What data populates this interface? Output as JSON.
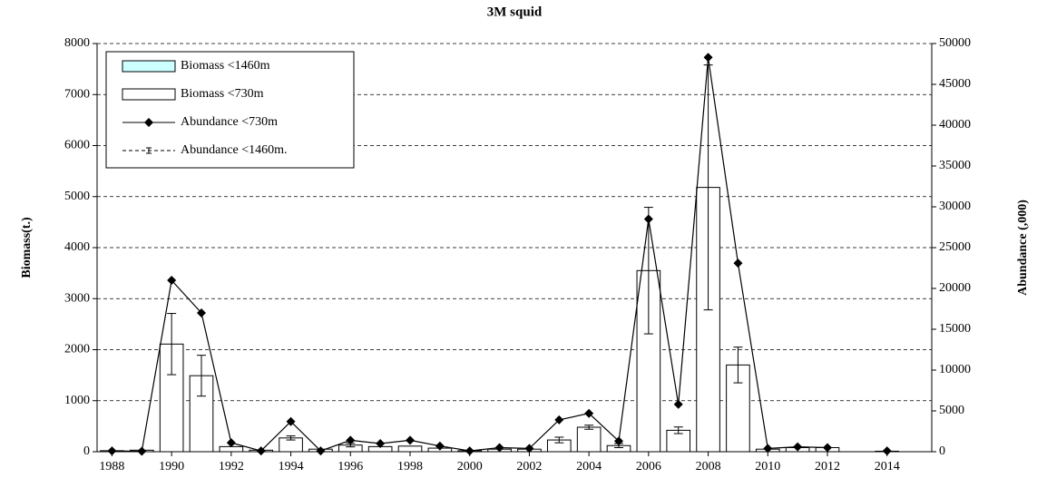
{
  "chart_data": {
    "type": "bar-line",
    "title": "3M squid",
    "y_label": "Biomass(t.)",
    "y2_label": "Abundance (,000)",
    "x": [
      1988,
      1989,
      1990,
      1991,
      1992,
      1993,
      1994,
      1995,
      1996,
      1997,
      1998,
      1999,
      2000,
      2001,
      2002,
      2003,
      2004,
      2005,
      2006,
      2007,
      2008,
      2009,
      2010,
      2011,
      2012,
      2013,
      2014,
      2015
    ],
    "xlim": [
      1987.5,
      2015.5
    ],
    "xticks": [
      1988,
      1990,
      1992,
      1994,
      1996,
      1998,
      2000,
      2002,
      2004,
      2006,
      2008,
      2010,
      2012,
      2014
    ],
    "ylim": [
      0,
      8000
    ],
    "yticks": [
      0,
      1000,
      2000,
      3000,
      4000,
      5000,
      6000,
      7000,
      8000
    ],
    "y2lim": [
      0,
      50000
    ],
    "y2ticks": [
      0,
      5000,
      10000,
      15000,
      20000,
      25000,
      30000,
      35000,
      40000,
      45000,
      50000
    ],
    "grid": true,
    "legend": "upper left",
    "series": [
      {
        "name": "Biomass <1460m",
        "type": "bar",
        "color": "#ccffff",
        "values": [
          null,
          null,
          null,
          null,
          null,
          null,
          null,
          null,
          null,
          null,
          null,
          null,
          null,
          null,
          null,
          null,
          null,
          null,
          null,
          null,
          null,
          null,
          null,
          null,
          null,
          null,
          null,
          null
        ]
      },
      {
        "name": "Biomass <730m",
        "type": "bar",
        "color": "#ffffff",
        "values": [
          20,
          30,
          2110,
          1490,
          100,
          30,
          270,
          50,
          130,
          100,
          110,
          70,
          20,
          50,
          50,
          230,
          480,
          120,
          3550,
          420,
          5180,
          1700,
          50,
          80,
          80,
          null,
          10,
          null
        ],
        "errors": [
          null,
          null,
          600,
          400,
          null,
          null,
          40,
          null,
          35,
          null,
          null,
          null,
          null,
          null,
          null,
          55,
          40,
          40,
          1240,
          65,
          2400,
          350,
          null,
          null,
          null,
          null,
          null,
          null
        ]
      },
      {
        "name": "Abundance <730m",
        "type": "line",
        "axis": "y2",
        "color": "#000000",
        "values": [
          100,
          50,
          21000,
          17000,
          1100,
          100,
          3700,
          100,
          1400,
          1000,
          1400,
          700,
          100,
          500,
          400,
          3900,
          4700,
          1300,
          28500,
          5800,
          48300,
          23100,
          400,
          600,
          500,
          null,
          100,
          null
        ]
      },
      {
        "name": "Abundance <1460m.",
        "type": "line",
        "axis": "y2",
        "color": "#000000",
        "dashed": true,
        "values": [
          null,
          null,
          null,
          null,
          null,
          null,
          null,
          null,
          null,
          null,
          null,
          null,
          null,
          null,
          null,
          null,
          null,
          null,
          null,
          null,
          null,
          null,
          null,
          null,
          null,
          null,
          null,
          null
        ]
      }
    ]
  }
}
